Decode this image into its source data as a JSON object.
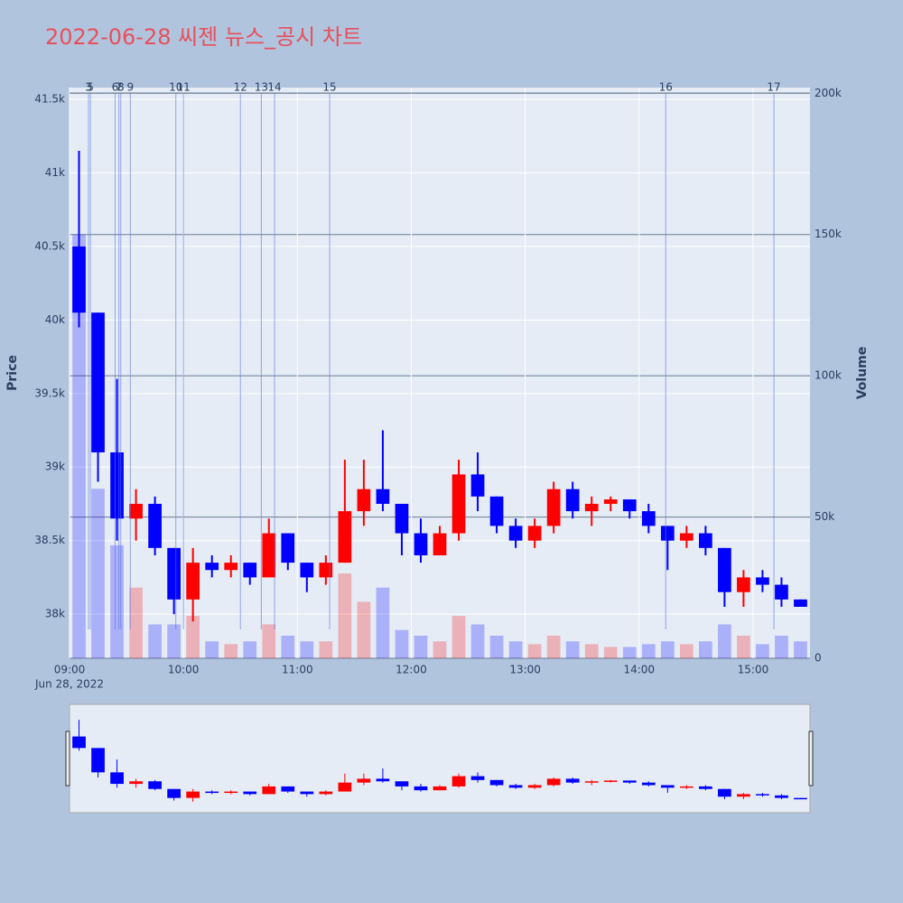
{
  "chart_data": {
    "type": "candlestick",
    "title": "2022-06-28 씨젠 뉴스_공시 차트",
    "y_label": "Price",
    "y2_label": "Volume",
    "x_date_label": "Jun 28, 2022",
    "up_color": "#ff0000",
    "down_color": "#0000ff",
    "xlim": [
      "2022-06-28 09:00",
      "2022-06-28 15:30"
    ],
    "xticks": [
      {
        "value": "2022-06-28 09:00",
        "label": "09:00"
      },
      {
        "value": "2022-06-28 10:00",
        "label": "10:00"
      },
      {
        "value": "2022-06-28 11:00",
        "label": "11:00"
      },
      {
        "value": "2022-06-28 12:00",
        "label": "12:00"
      },
      {
        "value": "2022-06-28 13:00",
        "label": "13:00"
      },
      {
        "value": "2022-06-28 14:00",
        "label": "14:00"
      },
      {
        "value": "2022-06-28 15:00",
        "label": "15:00"
      }
    ],
    "ylim": [
      37700,
      41580
    ],
    "yticks": [
      {
        "value": 38000,
        "label": "38k"
      },
      {
        "value": 38500,
        "label": "38.5k"
      },
      {
        "value": 39000,
        "label": "39k"
      },
      {
        "value": 39500,
        "label": "39.5k"
      },
      {
        "value": 40000,
        "label": "40k"
      },
      {
        "value": 40500,
        "label": "40.5k"
      },
      {
        "value": 41000,
        "label": "41k"
      },
      {
        "value": 41500,
        "label": "41.5k"
      }
    ],
    "y2lim": [
      0,
      202000
    ],
    "y2ticks": [
      0,
      {
        "value": 50000,
        "label": "50k"
      },
      {
        "value": 100000,
        "label": "100k"
      },
      {
        "value": 150000,
        "label": "150k"
      },
      {
        "value": 200000,
        "label": "200k"
      }
    ],
    "grid": true,
    "x": [
      "2022-06-28 09:00",
      "2022-06-28 09:10",
      "2022-06-28 09:20",
      "2022-06-28 09:30",
      "2022-06-28 09:40",
      "2022-06-28 09:50",
      "2022-06-28 10:00",
      "2022-06-28 10:10",
      "2022-06-28 10:20",
      "2022-06-28 10:30",
      "2022-06-28 10:40",
      "2022-06-28 10:50",
      "2022-06-28 11:00",
      "2022-06-28 11:10",
      "2022-06-28 11:20",
      "2022-06-28 11:30",
      "2022-06-28 11:40",
      "2022-06-28 11:50",
      "2022-06-28 12:00",
      "2022-06-28 12:10",
      "2022-06-28 12:20",
      "2022-06-28 12:30",
      "2022-06-28 12:40",
      "2022-06-28 12:50",
      "2022-06-28 13:00",
      "2022-06-28 13:10",
      "2022-06-28 13:20",
      "2022-06-28 13:30",
      "2022-06-28 13:40",
      "2022-06-28 13:50",
      "2022-06-28 14:00",
      "2022-06-28 14:10",
      "2022-06-28 14:20",
      "2022-06-28 14:30",
      "2022-06-28 14:40",
      "2022-06-28 14:50",
      "2022-06-28 15:00",
      "2022-06-28 15:10",
      "2022-06-28 15:20"
    ],
    "open": [
      40500,
      40050,
      39100,
      38650,
      38750,
      38450,
      38100,
      38350,
      38300,
      38350,
      38250,
      38550,
      38350,
      38250,
      38350,
      38700,
      38850,
      38750,
      38550,
      38400,
      38550,
      38950,
      38800,
      38600,
      38500,
      38600,
      38850,
      38700,
      38750,
      38780,
      38700,
      38600,
      38500,
      38550,
      38450,
      38150,
      38250,
      38200,
      38100
    ],
    "high": [
      41150,
      40050,
      39600,
      38850,
      38800,
      38450,
      38450,
      38400,
      38400,
      38350,
      38650,
      38550,
      38350,
      38400,
      39050,
      39050,
      39250,
      38750,
      38650,
      38600,
      39050,
      39100,
      38800,
      38650,
      38650,
      38900,
      38900,
      38800,
      38800,
      38780,
      38750,
      38600,
      38600,
      38600,
      38450,
      38300,
      38300,
      38250,
      38100
    ],
    "low": [
      39950,
      38900,
      38500,
      38500,
      38400,
      38000,
      37950,
      38250,
      38250,
      38200,
      38250,
      38300,
      38150,
      38200,
      38350,
      38600,
      38700,
      38400,
      38350,
      38400,
      38500,
      38700,
      38550,
      38450,
      38450,
      38550,
      38650,
      38600,
      38700,
      38650,
      38550,
      38300,
      38450,
      38400,
      38050,
      38050,
      38150,
      38050,
      38050
    ],
    "close": [
      40050,
      39100,
      38650,
      38750,
      38450,
      38100,
      38350,
      38300,
      38350,
      38250,
      38550,
      38350,
      38250,
      38350,
      38700,
      38850,
      38750,
      38550,
      38400,
      38550,
      38950,
      38800,
      38600,
      38500,
      38600,
      38850,
      38700,
      38750,
      38780,
      38700,
      38600,
      38500,
      38550,
      38450,
      38150,
      38250,
      38200,
      38100,
      38050
    ],
    "volume": [
      150000,
      60000,
      40000,
      25000,
      12000,
      12000,
      15000,
      6000,
      5000,
      6000,
      12000,
      8000,
      6000,
      6000,
      30000,
      20000,
      25000,
      10000,
      8000,
      6000,
      15000,
      12000,
      8000,
      6000,
      5000,
      8000,
      6000,
      5000,
      4000,
      4000,
      5000,
      6000,
      5000,
      6000,
      12000,
      8000,
      5000,
      8000,
      6000
    ],
    "news": [
      {
        "label": "3",
        "x": "2022-06-28 09:10"
      },
      {
        "label": "5",
        "x": "2022-06-28 09:11"
      },
      {
        "label": "6",
        "x": "2022-06-28 09:24"
      },
      {
        "label": "7",
        "x": "2022-06-28 09:26"
      },
      {
        "label": "8",
        "x": "2022-06-28 09:27"
      },
      {
        "label": "9",
        "x": "2022-06-28 09:32"
      },
      {
        "label": "10",
        "x": "2022-06-28 09:56"
      },
      {
        "label": "11",
        "x": "2022-06-28 10:00"
      },
      {
        "label": "12",
        "x": "2022-06-28 10:30"
      },
      {
        "label": "13",
        "x": "2022-06-28 10:41"
      },
      {
        "label": "14",
        "x": "2022-06-28 10:48"
      },
      {
        "label": "15",
        "x": "2022-06-28 11:17"
      },
      {
        "label": "16",
        "x": "2022-06-28 14:14"
      },
      {
        "label": "17",
        "x": "2022-06-28 15:11"
      }
    ]
  }
}
